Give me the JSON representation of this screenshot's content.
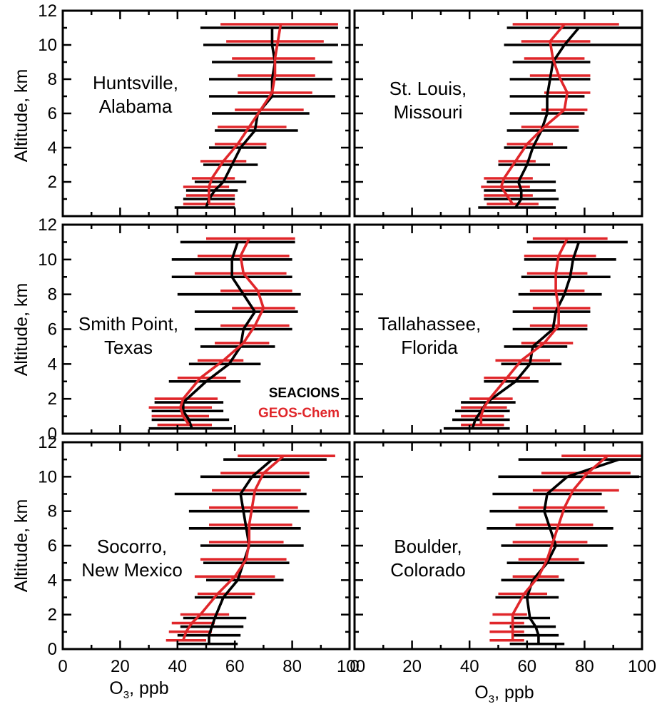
{
  "figure": {
    "ylabel": "Altitude, km",
    "xlabel_main": "O",
    "xlabel_sub": "3",
    "xlabel_rest": ", ppb",
    "legend": [
      {
        "label": "SEACIONS",
        "color": "#000000"
      },
      {
        "label": "GEOS-Chem",
        "color": "#e0262a"
      }
    ],
    "colors": {
      "observed": "#000000",
      "model": "#e0262a"
    }
  },
  "chart_data": [
    {
      "type": "line",
      "site_line1": "Huntsville,",
      "site_line2": "Alabama",
      "xlim": [
        0,
        100
      ],
      "ylim": [
        0,
        12
      ],
      "xticks": [
        "0",
        "20",
        "40",
        "60",
        "80",
        "100"
      ],
      "yticks": [
        "2",
        "4",
        "6",
        "8",
        "10",
        "12"
      ],
      "series": [
        {
          "name": "SEACIONS",
          "altitude": [
            0.5,
            1.0,
            1.5,
            2.0,
            3.0,
            4.0,
            5.0,
            6.0,
            7.0,
            8.0,
            9.0,
            10.0,
            11.0
          ],
          "mean": [
            50,
            51,
            53,
            56,
            59,
            62,
            67,
            68,
            73,
            73,
            74,
            73,
            73
          ],
          "low": [
            39,
            42,
            43,
            46,
            49,
            51,
            53,
            52,
            51,
            51,
            52,
            49,
            48
          ],
          "high": [
            60,
            60,
            61,
            64,
            68,
            71,
            82,
            86,
            95,
            94,
            94,
            96,
            96
          ]
        },
        {
          "name": "GEOS-Chem",
          "altitude": [
            0.5,
            1.0,
            1.5,
            2.0,
            3.0,
            4.0,
            5.0,
            6.0,
            7.0,
            8.0,
            9.0,
            10.0,
            11.0
          ],
          "mean": [
            51,
            51,
            51,
            52,
            56,
            61,
            65,
            69,
            73,
            74,
            74,
            75,
            76
          ],
          "low": [
            42,
            43,
            42,
            45,
            48,
            53,
            54,
            60,
            61,
            61,
            59,
            57,
            55
          ],
          "high": [
            60,
            60,
            58,
            60,
            64,
            71,
            78,
            84,
            87,
            88,
            88,
            91,
            96
          ]
        }
      ]
    },
    {
      "type": "line",
      "site_line1": "St. Louis,",
      "site_line2": "Missouri",
      "xlim": [
        0,
        100
      ],
      "ylim": [
        0,
        12
      ],
      "xticks": [
        "0",
        "20",
        "40",
        "60",
        "80",
        "100"
      ],
      "yticks": [
        "2",
        "4",
        "6",
        "8",
        "10",
        "12"
      ],
      "series": [
        {
          "name": "SEACIONS",
          "altitude": [
            0.5,
            1.0,
            1.5,
            2.0,
            3.0,
            4.0,
            5.0,
            6.0,
            7.0,
            8.0,
            9.0,
            10.0,
            11.0
          ],
          "mean": [
            56,
            58,
            58,
            57,
            60,
            62,
            65,
            67,
            67,
            68,
            69,
            73,
            78
          ],
          "low": [
            43,
            45,
            45,
            46,
            50,
            52,
            53,
            54,
            54,
            54,
            55,
            52,
            53
          ],
          "high": [
            70,
            71,
            70,
            70,
            68,
            74,
            78,
            80,
            80,
            82,
            82,
            100,
            100
          ]
        },
        {
          "name": "GEOS-Chem",
          "altitude": [
            0.5,
            1.0,
            1.5,
            2.0,
            3.0,
            4.0,
            5.0,
            6.0,
            7.0,
            8.0,
            9.0,
            10.0,
            11.0
          ],
          "mean": [
            55,
            53,
            51,
            52,
            56,
            60,
            66,
            73,
            74,
            71,
            69,
            68,
            73
          ],
          "low": [
            46,
            45,
            44,
            45,
            50,
            53,
            58,
            65,
            66,
            61,
            59,
            58,
            55
          ],
          "high": [
            64,
            62,
            61,
            62,
            63,
            69,
            78,
            81,
            82,
            82,
            80,
            82,
            92
          ]
        }
      ]
    },
    {
      "type": "line",
      "site_line1": "Smith Point,",
      "site_line2": "Texas",
      "xlim": [
        0,
        100
      ],
      "ylim": [
        0,
        12
      ],
      "xticks": [
        "0",
        "20",
        "40",
        "60",
        "80",
        "100"
      ],
      "yticks": [
        "0",
        "2",
        "4",
        "6",
        "8",
        "10",
        "12"
      ],
      "series": [
        {
          "name": "SEACIONS",
          "altitude": [
            0.3,
            0.8,
            1.3,
            1.8,
            3.0,
            4.0,
            5.0,
            6.0,
            7.0,
            8.0,
            9.0,
            10.0,
            11.0
          ],
          "mean": [
            45,
            44,
            42,
            42,
            50,
            58,
            62,
            63,
            67,
            63,
            59,
            59,
            61
          ],
          "low": [
            30,
            31,
            31,
            32,
            37,
            44,
            48,
            46,
            46,
            40,
            38,
            38,
            41
          ],
          "high": [
            59,
            58,
            56,
            56,
            62,
            69,
            74,
            80,
            82,
            83,
            80,
            80,
            81
          ]
        },
        {
          "name": "GEOS-Chem",
          "altitude": [
            0.3,
            0.8,
            1.3,
            1.8,
            3.0,
            4.0,
            5.0,
            6.0,
            7.0,
            8.0,
            9.0,
            10.0,
            11.0
          ],
          "mean": [
            44,
            42,
            41,
            42,
            48,
            56,
            63,
            67,
            70,
            68,
            63,
            62,
            65
          ],
          "low": [
            33,
            31,
            30,
            32,
            40,
            47,
            53,
            55,
            59,
            55,
            46,
            47,
            50
          ],
          "high": [
            52,
            51,
            52,
            54,
            57,
            63,
            72,
            79,
            81,
            80,
            78,
            79,
            81
          ]
        }
      ]
    },
    {
      "type": "line",
      "site_line1": "Tallahassee,",
      "site_line2": "Florida",
      "xlim": [
        0,
        100
      ],
      "ylim": [
        0,
        12
      ],
      "xticks": [
        "0",
        "20",
        "40",
        "60",
        "80",
        "100"
      ],
      "yticks": [
        "0",
        "2",
        "4",
        "6",
        "8",
        "10",
        "12"
      ],
      "series": [
        {
          "name": "SEACIONS",
          "altitude": [
            0.3,
            0.8,
            1.3,
            1.8,
            3.0,
            4.0,
            5.0,
            6.0,
            7.0,
            8.0,
            9.0,
            10.0,
            11.0
          ],
          "mean": [
            41,
            42,
            44,
            46,
            56,
            61,
            62,
            69,
            70,
            73,
            75,
            76,
            78
          ],
          "low": [
            31,
            34,
            35,
            37,
            45,
            51,
            52,
            55,
            55,
            57,
            58,
            59,
            60
          ],
          "high": [
            54,
            54,
            54,
            56,
            64,
            72,
            74,
            81,
            82,
            86,
            89,
            91,
            95
          ]
        },
        {
          "name": "GEOS-Chem",
          "altitude": [
            0.3,
            0.8,
            1.3,
            1.8,
            3.0,
            4.0,
            5.0,
            6.0,
            7.0,
            8.0,
            9.0,
            10.0,
            11.0
          ],
          "mean": [
            44,
            44,
            45,
            47,
            53,
            58,
            66,
            71,
            71,
            70,
            70,
            71,
            74
          ],
          "low": [
            37,
            37,
            37,
            40,
            45,
            49,
            58,
            61,
            62,
            61,
            60,
            59,
            62
          ],
          "high": [
            52,
            52,
            53,
            55,
            61,
            68,
            76,
            81,
            82,
            80,
            81,
            84,
            88
          ]
        }
      ]
    },
    {
      "type": "line",
      "site_line1": "Socorro,",
      "site_line2": "New Mexico",
      "xlim": [
        0,
        100
      ],
      "ylim": [
        0,
        12
      ],
      "xticks": [
        "0",
        "20",
        "40",
        "60",
        "80",
        "100"
      ],
      "yticks": [
        "0",
        "2",
        "4",
        "6",
        "8",
        "10",
        "12"
      ],
      "series": [
        {
          "name": "SEACIONS",
          "altitude": [
            0.3,
            0.8,
            1.3,
            1.8,
            3.0,
            4.0,
            5.0,
            6.0,
            7.0,
            8.0,
            9.0,
            10.0,
            11.0
          ],
          "mean": [
            51,
            51,
            52,
            53,
            56,
            61,
            63,
            65,
            64,
            63,
            62,
            66,
            73
          ],
          "low": [
            40,
            40,
            41,
            42,
            46,
            50,
            49,
            48,
            44,
            44,
            39,
            48,
            56
          ],
          "high": [
            61,
            62,
            63,
            64,
            66,
            77,
            79,
            84,
            83,
            86,
            85,
            86,
            92
          ]
        },
        {
          "name": "GEOS-Chem",
          "altitude": [
            0.3,
            0.8,
            1.3,
            1.8,
            3.0,
            4.0,
            5.0,
            6.0,
            7.0,
            8.0,
            9.0,
            10.0,
            11.0
          ],
          "mean": [
            42,
            43,
            45,
            48,
            54,
            60,
            64,
            65,
            65,
            66,
            67,
            70,
            77
          ],
          "low": [
            36,
            37,
            38,
            41,
            47,
            46,
            48,
            51,
            51,
            51,
            52,
            55,
            61
          ],
          "high": [
            50,
            52,
            53,
            58,
            67,
            74,
            78,
            77,
            80,
            82,
            83,
            86,
            95
          ]
        }
      ]
    },
    {
      "type": "line",
      "site_line1": "Boulder,",
      "site_line2": "Colorado",
      "xlim": [
        0,
        100
      ],
      "ylim": [
        0,
        12
      ],
      "xticks": [
        "0",
        "20",
        "40",
        "60",
        "80",
        "100"
      ],
      "yticks": [
        "0",
        "2",
        "4",
        "6",
        "8",
        "10",
        "12"
      ],
      "series": [
        {
          "name": "SEACIONS",
          "altitude": [
            0.3,
            0.8,
            1.3,
            1.8,
            3.0,
            4.0,
            5.0,
            6.0,
            7.0,
            8.0,
            9.0,
            10.0,
            11.0
          ],
          "mean": [
            64,
            64,
            63,
            61,
            60,
            62,
            67,
            70,
            68,
            66,
            67,
            74,
            92
          ],
          "low": [
            54,
            55,
            54,
            55,
            49,
            51,
            53,
            51,
            46,
            47,
            48,
            50,
            57
          ],
          "high": [
            73,
            71,
            70,
            68,
            71,
            73,
            80,
            88,
            90,
            88,
            86,
            99,
            100
          ]
        },
        {
          "name": "GEOS-Chem",
          "altitude": [
            0.3,
            0.8,
            1.3,
            1.8,
            3.0,
            4.0,
            5.0,
            6.0,
            7.0,
            8.0,
            9.0,
            10.0,
            11.0
          ],
          "mean": [
            55,
            55,
            55,
            55,
            59,
            64,
            67,
            69,
            71,
            73,
            76,
            81,
            88
          ],
          "low": [
            47,
            47,
            47,
            48,
            50,
            55,
            57,
            55,
            56,
            57,
            62,
            65,
            72
          ],
          "high": [
            59,
            59,
            59,
            60,
            67,
            71,
            78,
            81,
            83,
            87,
            92,
            96,
            100
          ]
        }
      ]
    }
  ]
}
